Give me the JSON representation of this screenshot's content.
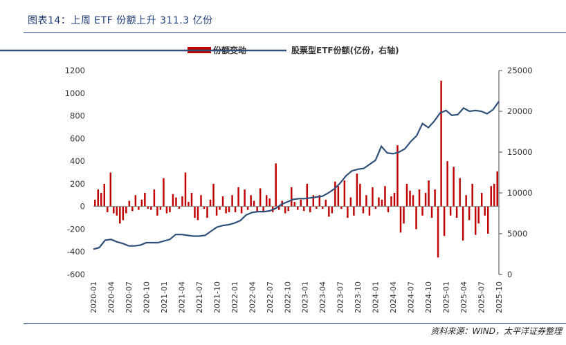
{
  "title": "图表14：上周 ETF 份额上升 311.3 亿份",
  "source": "资料来源：WIND，太平洋证券整理",
  "colors": {
    "bar": "#c00000",
    "line": "#2e4f7a",
    "header": "#1f3c78"
  },
  "chart_data": {
    "type": "bar+line",
    "legend": {
      "bar_label": "份额变动",
      "line_label": "股票型ETF份额(亿份，右轴)",
      "placement": "top-center"
    },
    "y_left": {
      "min": -600,
      "max": 1200,
      "step": 200,
      "ticks": [
        "1200",
        "1000",
        "800",
        "600",
        "400",
        "200",
        "0",
        "-200",
        "-400",
        "-600"
      ]
    },
    "y_right": {
      "min": 0,
      "max": 25000,
      "step": 5000,
      "ticks": [
        "25000",
        "20000",
        "15000",
        "10000",
        "5000",
        "0"
      ]
    },
    "x_ticks": [
      "2020-01",
      "2020-04",
      "2020-07",
      "2020-10",
      "2021-01",
      "2021-04",
      "2021-07",
      "2021-10",
      "2022-01",
      "2022-04",
      "2022-07",
      "2022-10",
      "2023-01",
      "2023-04",
      "2023-07",
      "2023-10",
      "2024-01",
      "2024-04",
      "2024-07",
      "2024-10",
      "2025-01",
      "2025-04",
      "2025-07",
      "2025-10"
    ],
    "line_series": {
      "name": "股票型ETF份额(亿份，右轴)",
      "points": [
        [
          "2020-01",
          3100
        ],
        [
          "2020-02",
          3300
        ],
        [
          "2020-03",
          4200
        ],
        [
          "2020-04",
          4300
        ],
        [
          "2020-05",
          4000
        ],
        [
          "2020-06",
          3800
        ],
        [
          "2020-07",
          3500
        ],
        [
          "2020-08",
          3500
        ],
        [
          "2020-09",
          3600
        ],
        [
          "2020-10",
          3900
        ],
        [
          "2020-11",
          3900
        ],
        [
          "2020-12",
          3900
        ],
        [
          "2021-01",
          4100
        ],
        [
          "2021-02",
          4300
        ],
        [
          "2021-03",
          4900
        ],
        [
          "2021-04",
          4900
        ],
        [
          "2021-05",
          4800
        ],
        [
          "2021-06",
          4700
        ],
        [
          "2021-07",
          4700
        ],
        [
          "2021-08",
          4800
        ],
        [
          "2021-09",
          5300
        ],
        [
          "2021-10",
          5800
        ],
        [
          "2021-11",
          6000
        ],
        [
          "2021-12",
          6100
        ],
        [
          "2022-01",
          6300
        ],
        [
          "2022-02",
          6600
        ],
        [
          "2022-03",
          7300
        ],
        [
          "2022-04",
          7600
        ],
        [
          "2022-05",
          7700
        ],
        [
          "2022-06",
          7700
        ],
        [
          "2022-07",
          7800
        ],
        [
          "2022-08",
          8100
        ],
        [
          "2022-09",
          8600
        ],
        [
          "2022-10",
          8900
        ],
        [
          "2022-11",
          9200
        ],
        [
          "2022-12",
          9300
        ],
        [
          "2023-01",
          9300
        ],
        [
          "2023-02",
          9400
        ],
        [
          "2023-03",
          9500
        ],
        [
          "2023-04",
          9600
        ],
        [
          "2023-05",
          10000
        ],
        [
          "2023-06",
          10500
        ],
        [
          "2023-07",
          11200
        ],
        [
          "2023-08",
          12100
        ],
        [
          "2023-09",
          12700
        ],
        [
          "2023-10",
          12900
        ],
        [
          "2023-11",
          13000
        ],
        [
          "2023-12",
          13500
        ],
        [
          "2024-01",
          14000
        ],
        [
          "2024-02",
          15700
        ],
        [
          "2024-03",
          14900
        ],
        [
          "2024-04",
          14800
        ],
        [
          "2024-05",
          15000
        ],
        [
          "2024-06",
          15400
        ],
        [
          "2024-07",
          16300
        ],
        [
          "2024-08",
          17000
        ],
        [
          "2024-09",
          18500
        ],
        [
          "2024-10",
          18000
        ],
        [
          "2024-11",
          18800
        ],
        [
          "2024-12",
          19800
        ],
        [
          "2025-01",
          20100
        ],
        [
          "2025-02",
          19500
        ],
        [
          "2025-03",
          19600
        ],
        [
          "2025-04",
          20400
        ],
        [
          "2025-05",
          20000
        ],
        [
          "2025-06",
          20100
        ],
        [
          "2025-07",
          20000
        ],
        [
          "2025-08",
          19700
        ],
        [
          "2025-09",
          20200
        ],
        [
          "2025-10",
          21200
        ]
      ]
    },
    "bar_series": {
      "name": "份额变动",
      "values": [
        60,
        150,
        120,
        200,
        -50,
        300,
        -60,
        -80,
        -150,
        -120,
        -60,
        50,
        -40,
        100,
        -30,
        60,
        120,
        -20,
        -30,
        150,
        -80,
        -30,
        250,
        -60,
        -50,
        110,
        80,
        -20,
        90,
        300,
        40,
        120,
        -100,
        -120,
        100,
        -20,
        -100,
        60,
        200,
        -80,
        -30,
        90,
        -60,
        -50,
        100,
        -50,
        170,
        -60,
        150,
        -30,
        100,
        50,
        -50,
        160,
        -40,
        100,
        70,
        -50,
        380,
        -30,
        50,
        -60,
        -40,
        170,
        40,
        -30,
        60,
        -40,
        200,
        -50,
        100,
        -20,
        100,
        -20,
        60,
        -90,
        -60,
        220,
        180,
        -20,
        230,
        -100,
        80,
        -80,
        290,
        200,
        -60,
        100,
        -80,
        170,
        -20,
        80,
        60,
        180,
        -50,
        90,
        120,
        540,
        -230,
        -150,
        200,
        140,
        100,
        -200,
        150,
        -80,
        120,
        230,
        -100,
        150,
        -450,
        1110,
        -260,
        400,
        -80,
        350,
        -100,
        250,
        -300,
        100,
        -120,
        200,
        -250,
        -150,
        120,
        -80,
        -240,
        180,
        200,
        310
      ]
    }
  }
}
